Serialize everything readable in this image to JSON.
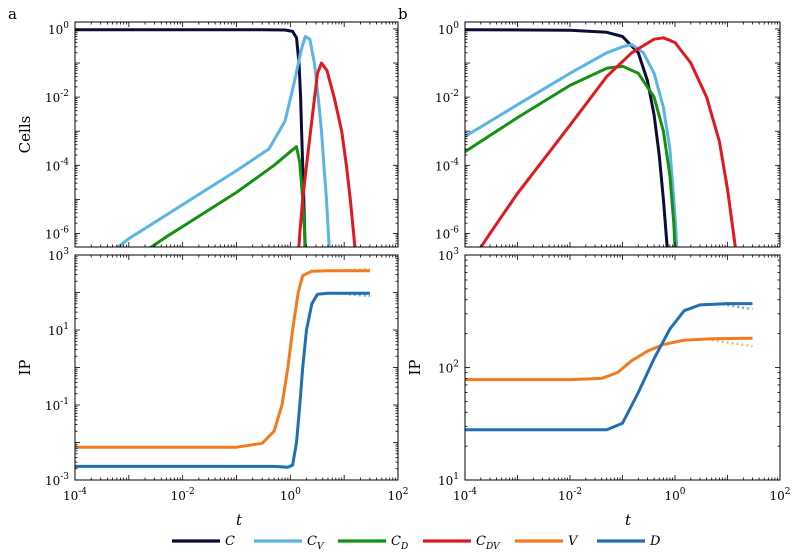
{
  "chart_data": {
    "type": "line",
    "x_scale": "log",
    "xlabel": "t",
    "xlim": [
      0.0001,
      100
    ],
    "x_tick_labels": [
      "10^-4",
      "10^-2",
      "10^0",
      "10^2"
    ],
    "colors": {
      "C": "#0c0c3a",
      "C_V": "#5ab4e5",
      "C_D": "#139113",
      "C_DV": "#e0191e",
      "V": "#f47a20",
      "D": "#1f6fb2"
    },
    "legend": {
      "position": "bottom",
      "entries": [
        {
          "key": "C",
          "label": "C",
          "sub": ""
        },
        {
          "key": "C_V",
          "label": "C",
          "sub": "V"
        },
        {
          "key": "C_D",
          "label": "C",
          "sub": "D"
        },
        {
          "key": "C_DV",
          "label": "C",
          "sub": "DV"
        },
        {
          "key": "V",
          "label": "V",
          "sub": ""
        },
        {
          "key": "D",
          "label": "D",
          "sub": ""
        }
      ]
    },
    "panels": [
      {
        "id": "a-top",
        "panel_label": "a",
        "ylabel": "Cells",
        "y_scale": "log",
        "ylim": [
          4e-07,
          1.6
        ],
        "y_tick_labels": [
          "10^-6",
          "10^-4",
          "10^-2",
          "10^0"
        ],
        "series": [
          {
            "name": "C",
            "points": [
              [
                0.0001,
                0.95
              ],
              [
                0.01,
                0.95
              ],
              [
                0.3,
                0.95
              ],
              [
                0.8,
                0.93
              ],
              [
                1.1,
                0.85
              ],
              [
                1.3,
                0.55
              ],
              [
                1.45,
                0.1
              ],
              [
                1.55,
                0.01
              ],
              [
                1.62,
                0.001
              ],
              [
                1.7,
                0.0001
              ],
              [
                1.78,
                1e-05
              ],
              [
                1.85,
                1e-06
              ],
              [
                1.9,
                2e-07
              ]
            ]
          },
          {
            "name": "C_V",
            "points": [
              [
                0.0005,
                3e-07
              ],
              [
                0.001,
                7e-07
              ],
              [
                0.01,
                7e-06
              ],
              [
                0.1,
                7e-05
              ],
              [
                0.4,
                0.0003
              ],
              [
                0.8,
                0.002
              ],
              [
                1.2,
                0.03
              ],
              [
                1.6,
                0.25
              ],
              [
                1.9,
                0.6
              ],
              [
                2.3,
                0.5
              ],
              [
                2.8,
                0.1
              ],
              [
                3.3,
                0.01
              ],
              [
                3.8,
                0.001
              ],
              [
                4.2,
                0.0001
              ],
              [
                4.7,
                1e-05
              ],
              [
                5.1,
                1e-06
              ],
              [
                5.4,
                2e-07
              ]
            ]
          },
          {
            "name": "C_D",
            "points": [
              [
                0.002,
                3e-07
              ],
              [
                0.005,
                8e-07
              ],
              [
                0.01,
                1.6e-06
              ],
              [
                0.1,
                1.6e-05
              ],
              [
                0.5,
                0.0001
              ],
              [
                1.0,
                0.00025
              ],
              [
                1.3,
                0.00035
              ],
              [
                1.5,
                0.00012
              ],
              [
                1.7,
                1e-05
              ],
              [
                1.85,
                1e-06
              ],
              [
                1.95,
                2e-07
              ]
            ]
          },
          {
            "name": "C_DV",
            "points": [
              [
                1.4,
                2e-07
              ],
              [
                1.5,
                1e-06
              ],
              [
                1.7,
                1e-05
              ],
              [
                2.0,
                0.0001
              ],
              [
                2.5,
                0.002
              ],
              [
                3.2,
                0.05
              ],
              [
                3.8,
                0.1
              ],
              [
                4.8,
                0.06
              ],
              [
                6.5,
                0.01
              ],
              [
                9,
                0.001
              ],
              [
                11,
                0.0001
              ],
              [
                13,
                1e-05
              ],
              [
                15,
                1e-06
              ],
              [
                16.5,
                2e-07
              ]
            ]
          }
        ]
      },
      {
        "id": "b-top",
        "panel_label": "b",
        "ylabel": "",
        "y_scale": "log",
        "ylim": [
          4e-07,
          1.6
        ],
        "y_tick_labels": [
          "10^-6",
          "10^-4",
          "10^-2",
          "10^0"
        ],
        "series": [
          {
            "name": "C",
            "points": [
              [
                0.0001,
                0.95
              ],
              [
                0.01,
                0.92
              ],
              [
                0.05,
                0.8
              ],
              [
                0.1,
                0.6
              ],
              [
                0.2,
                0.2
              ],
              [
                0.3,
                0.03
              ],
              [
                0.4,
                0.003
              ],
              [
                0.5,
                0.0002
              ],
              [
                0.6,
                1e-05
              ],
              [
                0.7,
                5e-07
              ],
              [
                0.75,
                2e-07
              ]
            ]
          },
          {
            "name": "C_V",
            "points": [
              [
                0.0001,
                0.0007
              ],
              [
                0.001,
                0.006
              ],
              [
                0.01,
                0.05
              ],
              [
                0.05,
                0.2
              ],
              [
                0.1,
                0.3
              ],
              [
                0.15,
                0.35
              ],
              [
                0.25,
                0.2
              ],
              [
                0.4,
                0.05
              ],
              [
                0.6,
                0.005
              ],
              [
                0.8,
                0.0003
              ],
              [
                0.95,
                1e-05
              ],
              [
                1.05,
                1e-06
              ],
              [
                1.1,
                2e-07
              ]
            ]
          },
          {
            "name": "C_D",
            "points": [
              [
                0.0001,
                0.00025
              ],
              [
                0.001,
                0.0025
              ],
              [
                0.01,
                0.022
              ],
              [
                0.05,
                0.07
              ],
              [
                0.1,
                0.08
              ],
              [
                0.2,
                0.05
              ],
              [
                0.4,
                0.01
              ],
              [
                0.6,
                0.001
              ],
              [
                0.8,
                5e-05
              ],
              [
                0.95,
                2e-06
              ],
              [
                1.02,
                2e-07
              ]
            ]
          },
          {
            "name": "C_DV",
            "points": [
              [
                0.00015,
                2e-07
              ],
              [
                0.0003,
                1e-06
              ],
              [
                0.001,
                1.5e-05
              ],
              [
                0.01,
                0.0015
              ],
              [
                0.05,
                0.04
              ],
              [
                0.15,
                0.2
              ],
              [
                0.4,
                0.5
              ],
              [
                0.6,
                0.55
              ],
              [
                1.0,
                0.4
              ],
              [
                2.0,
                0.1
              ],
              [
                4.0,
                0.01
              ],
              [
                7.0,
                0.0005
              ],
              [
                10,
                2e-05
              ],
              [
                13,
                1e-06
              ],
              [
                15,
                2e-07
              ]
            ]
          }
        ]
      },
      {
        "id": "a-bottom",
        "panel_label": "",
        "ylabel": "IP",
        "y_scale": "log",
        "ylim": [
          0.001,
          1000
        ],
        "y_tick_labels": [
          "10^-3",
          "10^-1",
          "10^1",
          "10^3"
        ],
        "series": [
          {
            "name": "V",
            "points": [
              [
                0.0001,
                0.0075
              ],
              [
                0.01,
                0.0075
              ],
              [
                0.1,
                0.0075
              ],
              [
                0.3,
                0.0095
              ],
              [
                0.5,
                0.02
              ],
              [
                0.7,
                0.1
              ],
              [
                0.9,
                1.0
              ],
              [
                1.1,
                10
              ],
              [
                1.4,
                100
              ],
              [
                1.7,
                280
              ],
              [
                2.5,
                370
              ],
              [
                5,
                380
              ],
              [
                30,
                380
              ]
            ],
            "dotted": [
              [
                8,
                380
              ],
              [
                30,
                420
              ]
            ]
          },
          {
            "name": "D",
            "points": [
              [
                0.0001,
                0.0023
              ],
              [
                0.01,
                0.0023
              ],
              [
                0.5,
                0.0023
              ],
              [
                0.9,
                0.0022
              ],
              [
                1.1,
                0.0025
              ],
              [
                1.3,
                0.01
              ],
              [
                1.5,
                0.1
              ],
              [
                1.7,
                1
              ],
              [
                2.0,
                10
              ],
              [
                2.5,
                50
              ],
              [
                3.2,
                90
              ],
              [
                5,
                95
              ],
              [
                30,
                95
              ]
            ],
            "dotted": [
              [
                8,
                95
              ],
              [
                30,
                80
              ]
            ]
          }
        ]
      },
      {
        "id": "b-bottom",
        "panel_label": "",
        "ylabel": "IP",
        "y_scale": "log",
        "ylim": [
          10,
          1000
        ],
        "y_tick_labels": [
          "10^1",
          "10^2",
          "10^3"
        ],
        "series": [
          {
            "name": "V",
            "points": [
              [
                0.0001,
                78
              ],
              [
                0.01,
                78
              ],
              [
                0.04,
                80
              ],
              [
                0.08,
                90
              ],
              [
                0.15,
                115
              ],
              [
                0.3,
                140
              ],
              [
                0.6,
                160
              ],
              [
                1.5,
                175
              ],
              [
                5,
                180
              ],
              [
                30,
                182
              ]
            ],
            "dotted": [
              [
                5,
                175
              ],
              [
                30,
                155
              ]
            ]
          },
          {
            "name": "D",
            "points": [
              [
                0.0001,
                28
              ],
              [
                0.01,
                28
              ],
              [
                0.05,
                28
              ],
              [
                0.1,
                32
              ],
              [
                0.2,
                60
              ],
              [
                0.4,
                120
              ],
              [
                0.8,
                220
              ],
              [
                1.5,
                320
              ],
              [
                3,
                360
              ],
              [
                10,
                370
              ],
              [
                30,
                370
              ]
            ],
            "dotted": [
              [
                8,
                365
              ],
              [
                30,
                330
              ]
            ]
          }
        ]
      }
    ]
  }
}
